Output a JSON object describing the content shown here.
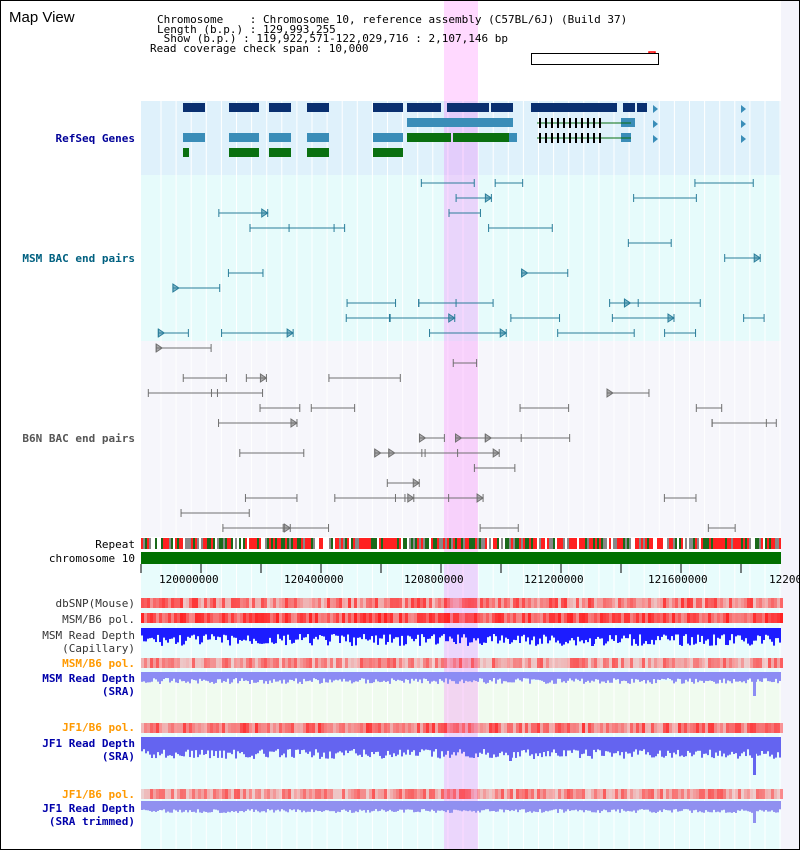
{
  "view_title": "Map View",
  "info": {
    "chromosome": "Chromosome    : Chromosome 10, reference assembly (C57BL/6J) (Build 37)",
    "length": "Length (b.p.) : 129,993,255",
    "show": " Show (b.p.) : 119,922,571-122,029,716 : 2,107,146 bp",
    "span": "Read coverage check span : 10,000"
  },
  "tracks": {
    "refseq": "RefSeq Genes",
    "msm_bac": "MSM BAC end pairs",
    "b6n_bac": "B6N BAC end pairs",
    "repeat": "Repeat",
    "chromosome": "chromosome 10",
    "dbsnp": "dbSNP(Mouse)",
    "msm_b6_pol": "MSM/B6 pol.",
    "msm_read_depth_cap_1": "MSM Read Depth",
    "msm_read_depth_cap_2": "(Capillary)",
    "msm_b6_pol_2": "MSM/B6 pol.",
    "msm_read_depth_sra_1": "MSM Read Depth",
    "msm_read_depth_sra_2": "(SRA)",
    "jf1_b6_pol": "JF1/B6 pol.",
    "jf1_read_depth_sra_1": "JF1 Read Depth",
    "jf1_read_depth_sra_2": "(SRA)",
    "jf1_b6_pol_2": "JF1/B6 pol.",
    "jf1_read_depth_trim_1": "JF1 Read Depth",
    "jf1_read_depth_trim_2": "(SRA trimmed)"
  },
  "axis": {
    "ticks": [
      "120000000",
      "120400000",
      "120800000",
      "121200000",
      "121600000",
      "12200"
    ]
  },
  "colors": {
    "refseq_label": "#000099",
    "msm_label": "#006080",
    "orange_label": "#ff9900",
    "blue_label": "#0000aa",
    "highlight": "#ff00ff"
  }
}
